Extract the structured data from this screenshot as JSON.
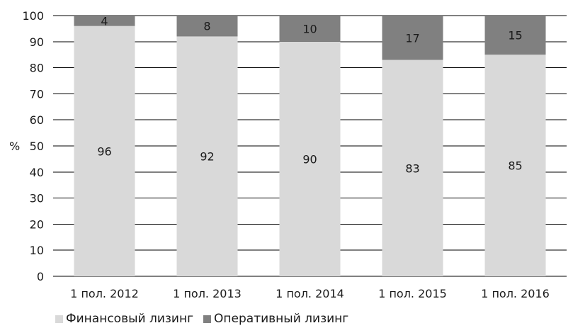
{
  "chart_data": {
    "type": "bar",
    "stacked": true,
    "categories": [
      "1 пол. 2012",
      "1 пол. 2013",
      "1 пол. 2014",
      "1 пол. 2015",
      "1 пол. 2016"
    ],
    "series": [
      {
        "name": "Финансовый лизинг",
        "values": [
          96,
          92,
          90,
          83,
          85
        ],
        "color": "#d9d9d9"
      },
      {
        "name": "Оперативный лизинг",
        "values": [
          4,
          8,
          10,
          17,
          15
        ],
        "color": "#808080"
      }
    ],
    "ylabel": "%",
    "ylim": [
      0,
      100
    ],
    "yticks": [
      0,
      10,
      20,
      30,
      40,
      50,
      60,
      70,
      80,
      90,
      100
    ],
    "grid": true,
    "legend_position": "bottom-left"
  }
}
